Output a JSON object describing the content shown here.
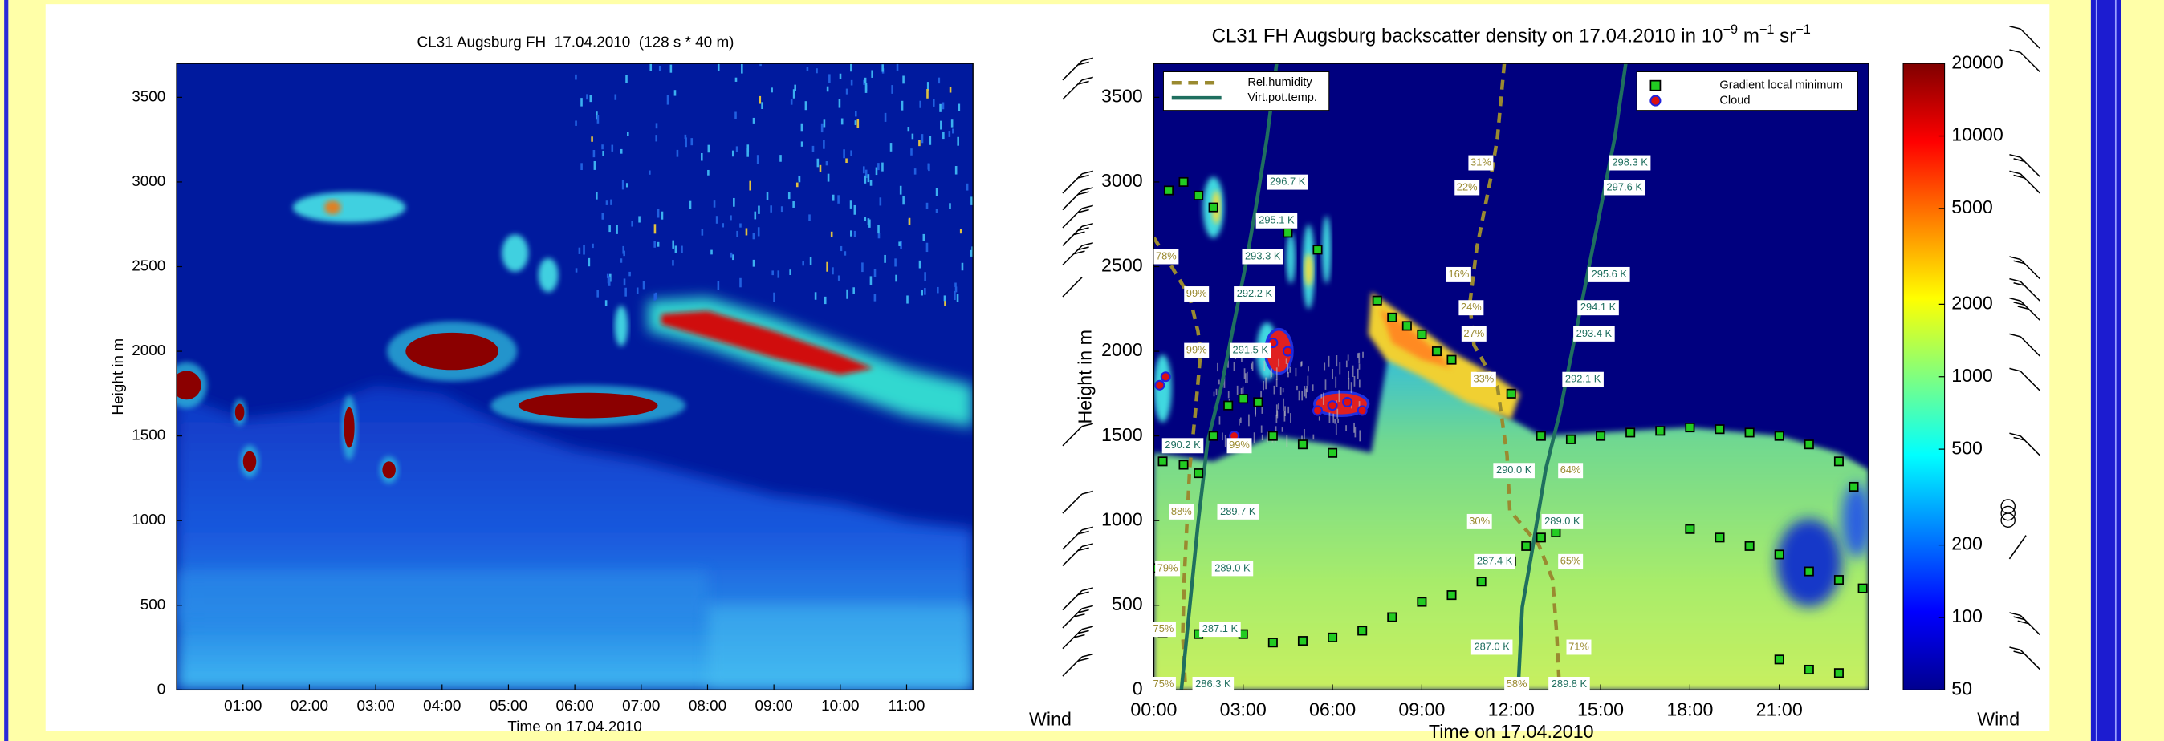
{
  "chart_data": [
    {
      "type": "heatmap",
      "title": "CL31 Augsburg FH  17.04.2010  (128 s * 40 m)",
      "xlabel": "Time on 17.04.2010",
      "ylabel": "Height in m",
      "xlim": [
        0,
        12
      ],
      "xticks": [
        {
          "value": 1,
          "label": "01:00"
        },
        {
          "value": 2,
          "label": "02:00"
        },
        {
          "value": 3,
          "label": "03:00"
        },
        {
          "value": 4,
          "label": "04:00"
        },
        {
          "value": 5,
          "label": "05:00"
        },
        {
          "value": 6,
          "label": "06:00"
        },
        {
          "value": 7,
          "label": "07:00"
        },
        {
          "value": 8,
          "label": "08:00"
        },
        {
          "value": 9,
          "label": "09:00"
        },
        {
          "value": 10,
          "label": "10:00"
        },
        {
          "value": 11,
          "label": "11:00"
        }
      ],
      "ylim": [
        0,
        3700
      ],
      "yticks": [
        0,
        500,
        1000,
        1500,
        2000,
        2500,
        3000,
        3500
      ]
    },
    {
      "type": "heatmap",
      "title": [
        "CL31 FH Augsburg backscatter density on 17.04.2010 in 10",
        "−9",
        " m",
        "−1",
        " sr",
        "−1"
      ],
      "xlabel": "Time on 17.04.2010",
      "ylabel": "Height in m",
      "wind_label": "Wind",
      "xlim": [
        0,
        24
      ],
      "xticks": [
        {
          "value": 0,
          "label": "00:00"
        },
        {
          "value": 3,
          "label": "03:00"
        },
        {
          "value": 6,
          "label": "06:00"
        },
        {
          "value": 9,
          "label": "09:00"
        },
        {
          "value": 12,
          "label": "12:00"
        },
        {
          "value": 15,
          "label": "15:00"
        },
        {
          "value": 18,
          "label": "18:00"
        },
        {
          "value": 21,
          "label": "21:00"
        }
      ],
      "ylim": [
        0,
        3700
      ],
      "yticks": [
        0,
        500,
        1000,
        1500,
        2000,
        2500,
        3000,
        3500
      ],
      "colorbar": {
        "scale": "log",
        "clim": [
          50,
          20000
        ],
        "ticks": [
          50,
          100,
          200,
          500,
          1000,
          2000,
          5000,
          10000,
          20000
        ]
      },
      "profiles": [
        {
          "name": "Rel.humidity",
          "color": "#9a8a30",
          "style": "dashed"
        },
        {
          "name": "Virt.pot.temp.",
          "color": "#1f6f5f",
          "style": "solid"
        }
      ],
      "series": [
        {
          "name": "Gradient local minimum",
          "color": "#22cc22",
          "marker": "square",
          "x": [
            0.3,
            1,
            1.5,
            2,
            2.5,
            3,
            3.5,
            4,
            5,
            6,
            7.5,
            8,
            8.5,
            9,
            9.5,
            10,
            11,
            12,
            13,
            14,
            15,
            16,
            17,
            18,
            19,
            20,
            21,
            22,
            23,
            23.5,
            0,
            0.3,
            1.5,
            3,
            4,
            5,
            6,
            7,
            8,
            9,
            10,
            11,
            12,
            12.5,
            13,
            13.5,
            18,
            19,
            20,
            21,
            22,
            23,
            23.8,
            21,
            22,
            23,
            0.5,
            1,
            1.5,
            2,
            4.5,
            5.5
          ],
          "values": [
            1350,
            1330,
            1280,
            1500,
            1680,
            1720,
            1700,
            1500,
            1450,
            1400,
            2300,
            2200,
            2150,
            2100,
            2000,
            1950,
            1850,
            1750,
            1500,
            1480,
            1500,
            1520,
            1530,
            1550,
            1540,
            1520,
            1500,
            1450,
            1350,
            1200,
            720,
            340,
            330,
            330,
            280,
            290,
            310,
            350,
            430,
            520,
            560,
            640,
            760,
            850,
            900,
            930,
            950,
            900,
            850,
            800,
            700,
            650,
            600,
            180,
            120,
            100,
            2950,
            3000,
            2920,
            2850,
            2700,
            2600
          ]
        },
        {
          "name": "Cloud",
          "color": "#dd1111",
          "edgecolor": "#2222dd",
          "marker": "circle",
          "x": [
            0.2,
            0.4,
            2.7,
            3.5,
            4,
            4.5,
            5.5,
            6,
            6.5,
            7
          ],
          "values": [
            1800,
            1850,
            1500,
            2000,
            2050,
            2000,
            1650,
            1680,
            1700,
            1650
          ]
        }
      ],
      "temperature_labels": [
        "296.7 K",
        "295.1 K",
        "293.3 K",
        "292.2 K",
        "291.5 K",
        "290.2 K",
        "289.7 K",
        "289.0 K",
        "287.1 K",
        "286.3 K",
        "298.3 K",
        "297.6 K",
        "295.6 K",
        "294.1 K",
        "293.4 K",
        "292.1 K",
        "290.0 K",
        "289.0 K",
        "287.4 K",
        "287.0 K",
        "289.8 K"
      ],
      "humidity_labels": [
        "78%",
        "99%",
        "99%",
        "99%",
        "88%",
        "79%",
        "75%",
        "75%",
        "31%",
        "22%",
        "16%",
        "24%",
        "27%",
        "33%",
        "64%",
        "30%",
        "65%",
        "71%",
        "58%"
      ]
    }
  ]
}
